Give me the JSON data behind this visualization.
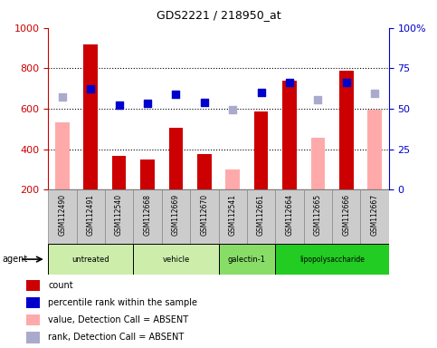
{
  "title": "GDS2221 / 218950_at",
  "samples": [
    "GSM112490",
    "GSM112491",
    "GSM112540",
    "GSM112668",
    "GSM112669",
    "GSM112670",
    "GSM112541",
    "GSM112661",
    "GSM112664",
    "GSM112665",
    "GSM112666",
    "GSM112667"
  ],
  "count_values": [
    null,
    920,
    365,
    347,
    505,
    375,
    null,
    585,
    740,
    null,
    787,
    null
  ],
  "absent_values": [
    535,
    null,
    null,
    null,
    null,
    null,
    298,
    null,
    null,
    455,
    null,
    595
  ],
  "rank_present": [
    null,
    700,
    620,
    628,
    673,
    630,
    null,
    680,
    728,
    null,
    730,
    null
  ],
  "rank_absent": [
    660,
    null,
    null,
    null,
    null,
    null,
    596,
    null,
    null,
    645,
    null,
    678
  ],
  "ylim_left": [
    200,
    1000
  ],
  "ylim_right": [
    0,
    100
  ],
  "yticks_left": [
    200,
    400,
    600,
    800,
    1000
  ],
  "yticks_right": [
    0,
    25,
    50,
    75,
    100
  ],
  "color_count": "#cc0000",
  "color_rank_present": "#0000cc",
  "color_absent_bar": "#ffaaaa",
  "color_absent_rank": "#aaaacc",
  "groups": [
    {
      "label": "untreated",
      "indices": [
        0,
        1,
        2
      ],
      "color": "#cceeaa"
    },
    {
      "label": "vehicle",
      "indices": [
        3,
        4,
        5
      ],
      "color": "#cceeaa"
    },
    {
      "label": "galectin-1",
      "indices": [
        6,
        7
      ],
      "color": "#88dd66"
    },
    {
      "label": "lipopolysaccharide",
      "indices": [
        8,
        9,
        10,
        11
      ],
      "color": "#22cc22"
    }
  ],
  "legend_items": [
    {
      "label": "count",
      "color": "#cc0000"
    },
    {
      "label": "percentile rank within the sample",
      "color": "#0000cc"
    },
    {
      "label": "value, Detection Call = ABSENT",
      "color": "#ffaaaa"
    },
    {
      "label": "rank, Detection Call = ABSENT",
      "color": "#aaaacc"
    }
  ],
  "agent_label": "agent",
  "bar_width": 0.5,
  "rank_marker_size": 40,
  "grid_lines": [
    400,
    600,
    800
  ]
}
